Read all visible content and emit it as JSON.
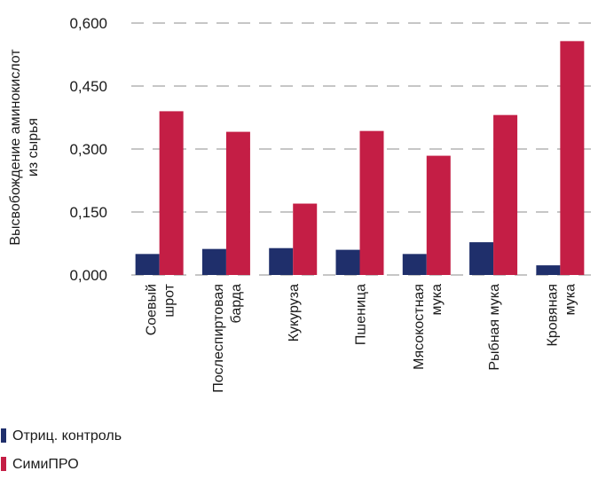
{
  "chart_data": {
    "type": "bar",
    "title": "",
    "xlabel": "",
    "ylabel_lines": [
      "Высвобождение аминокислот",
      "из сырья"
    ],
    "ylim": [
      0,
      0.6
    ],
    "yticks": [
      0.0,
      0.15,
      0.3,
      0.45,
      0.6
    ],
    "ytick_labels": [
      "0,000",
      "0,150",
      "0,300",
      "0,450",
      "0,600"
    ],
    "grid": true,
    "legend_position": "bottom-left",
    "categories": [
      [
        "Соевый",
        "шрот"
      ],
      [
        "Послеспиртовая",
        "барда"
      ],
      [
        "Кукуруза"
      ],
      [
        "Пшеница"
      ],
      [
        "Мясокостная",
        "мука"
      ],
      [
        "Рыбная мука"
      ],
      [
        "Кровяная",
        "мука"
      ]
    ],
    "series": [
      {
        "name": "Отриц. контроль",
        "color": "#1f2f6b",
        "values": [
          0.05,
          0.062,
          0.064,
          0.06,
          0.05,
          0.078,
          0.023
        ]
      },
      {
        "name": "СимиПРО",
        "color": "#c41e45",
        "values": [
          0.39,
          0.341,
          0.17,
          0.343,
          0.284,
          0.381,
          0.557
        ]
      }
    ]
  }
}
